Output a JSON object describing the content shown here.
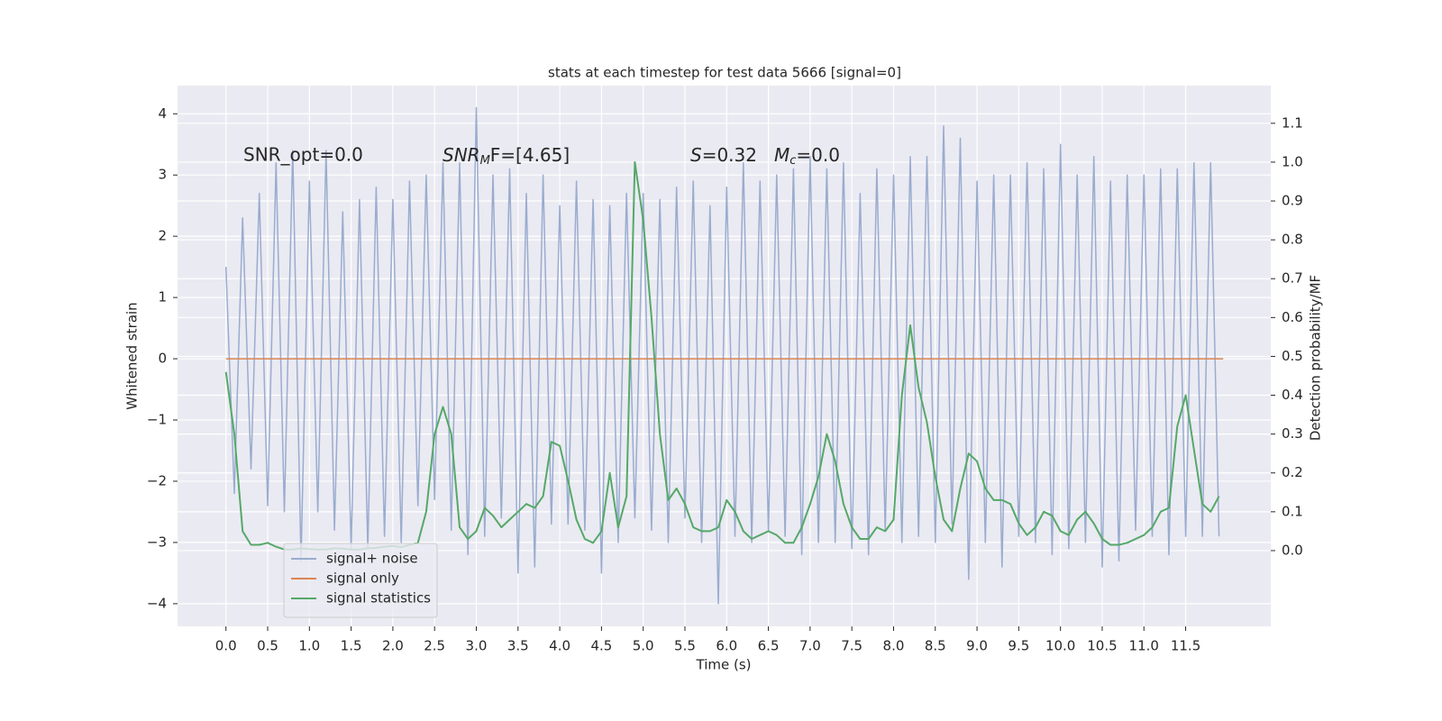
{
  "chart_data": {
    "type": "line",
    "title": "stats at each timestep for test data 5666 [signal=0]",
    "xlabel": "Time (s)",
    "ylabel": "Whitened strain",
    "y2label": "Detection probability/MF",
    "annotations": {
      "snr_opt": "SNR_opt=0.0",
      "snr_mf": [
        "SNR",
        "M",
        "F=[4.65]"
      ],
      "stat": [
        "S",
        "=0.32"
      ],
      "mc": [
        "M",
        "c",
        "=0.0"
      ]
    },
    "x": [
      0,
      0.1,
      0.2,
      0.3,
      0.4,
      0.5,
      0.6,
      0.7,
      0.8,
      0.9,
      1,
      1.1,
      1.2,
      1.3,
      1.4,
      1.5,
      1.6,
      1.7,
      1.8,
      1.9,
      2,
      2.1,
      2.2,
      2.3,
      2.4,
      2.5,
      2.6,
      2.7,
      2.8,
      2.9,
      3,
      3.1,
      3.2,
      3.3,
      3.4,
      3.5,
      3.6,
      3.7,
      3.8,
      3.9,
      4,
      4.1,
      4.2,
      4.3,
      4.4,
      4.5,
      4.6,
      4.7,
      4.8,
      4.9,
      5,
      5.1,
      5.2,
      5.3,
      5.4,
      5.5,
      5.6,
      5.7,
      5.8,
      5.9,
      6,
      6.1,
      6.2,
      6.3,
      6.4,
      6.5,
      6.6,
      6.7,
      6.8,
      6.9,
      7,
      7.1,
      7.2,
      7.3,
      7.4,
      7.5,
      7.6,
      7.7,
      7.8,
      7.9,
      8,
      8.1,
      8.2,
      8.3,
      8.4,
      8.5,
      8.6,
      8.7,
      8.8,
      8.9,
      9,
      9.1,
      9.2,
      9.3,
      9.4,
      9.5,
      9.6,
      9.7,
      9.8,
      9.9,
      10,
      10.1,
      10.2,
      10.3,
      10.4,
      10.5,
      10.6,
      10.7,
      10.8,
      10.9,
      11,
      11.1,
      11.2,
      11.3,
      11.4,
      11.5,
      11.6,
      11.7,
      11.8,
      11.9
    ],
    "series": [
      {
        "name": "signal+ noise",
        "color": "#9aaccf",
        "values": [
          1.5,
          -2.2,
          2.3,
          -1.8,
          2.7,
          -2.4,
          3.2,
          -2.5,
          3.4,
          -3.3,
          2.9,
          -2.5,
          3.4,
          -2.8,
          2.4,
          -3.1,
          2.6,
          -3.1,
          2.8,
          -2.9,
          2.6,
          -3.0,
          2.9,
          -2.4,
          3.0,
          -2.3,
          3.2,
          -2.8,
          3.2,
          -3.2,
          4.1,
          -2.9,
          3.0,
          -2.6,
          3.1,
          -3.5,
          2.7,
          -3.4,
          3.0,
          -2.7,
          2.5,
          -2.7,
          2.9,
          -2.8,
          2.6,
          -3.5,
          2.5,
          -3.0,
          2.7,
          -2.6,
          2.7,
          -2.8,
          2.6,
          -3.0,
          2.8,
          -2.6,
          2.9,
          -3.0,
          2.5,
          -4.0,
          2.8,
          -2.9,
          3.2,
          -3.0,
          2.9,
          -2.8,
          3.0,
          -2.9,
          3.1,
          -3.2,
          3.3,
          -3.0,
          3.1,
          -3.0,
          3.2,
          -3.1,
          2.7,
          -3.2,
          3.1,
          -2.8,
          3.0,
          -3.0,
          3.3,
          -2.9,
          3.3,
          -3.0,
          3.8,
          -2.7,
          3.6,
          -3.6,
          2.9,
          -3.0,
          3.0,
          -3.4,
          3.0,
          -2.9,
          3.2,
          -3.0,
          3.1,
          -3.2,
          3.5,
          -3.1,
          3.0,
          -3.0,
          3.3,
          -3.4,
          2.9,
          -3.3,
          3.0,
          -2.8,
          3.0,
          -2.9,
          3.1,
          -3.2,
          3.1,
          -2.9,
          3.2,
          -2.9,
          3.2,
          -2.9
        ]
      },
      {
        "name": "signal only",
        "color": "#dd8452",
        "x": [
          0,
          11.95
        ],
        "values": [
          0,
          0
        ]
      },
      {
        "name": "signal statistics",
        "color": "#55a868",
        "axis": "y2",
        "values": [
          0.46,
          0.3,
          0.05,
          0.015,
          0.015,
          0.02,
          0.01,
          0.003,
          0.003,
          0.006,
          0.004,
          0.003,
          0.003,
          0.006,
          0.005,
          0.003,
          0.003,
          0.006,
          0.007,
          0.01,
          0.012,
          0.009,
          0.015,
          0.02,
          0.1,
          0.3,
          0.37,
          0.3,
          0.06,
          0.03,
          0.05,
          0.11,
          0.09,
          0.06,
          0.08,
          0.1,
          0.12,
          0.11,
          0.14,
          0.28,
          0.27,
          0.18,
          0.08,
          0.03,
          0.02,
          0.05,
          0.2,
          0.06,
          0.14,
          1.0,
          0.85,
          0.6,
          0.3,
          0.13,
          0.16,
          0.12,
          0.06,
          0.05,
          0.05,
          0.06,
          0.13,
          0.1,
          0.05,
          0.03,
          0.04,
          0.05,
          0.04,
          0.02,
          0.02,
          0.06,
          0.12,
          0.19,
          0.3,
          0.23,
          0.12,
          0.06,
          0.03,
          0.03,
          0.06,
          0.05,
          0.08,
          0.4,
          0.58,
          0.42,
          0.33,
          0.19,
          0.08,
          0.05,
          0.16,
          0.25,
          0.23,
          0.16,
          0.13,
          0.13,
          0.12,
          0.07,
          0.04,
          0.06,
          0.1,
          0.09,
          0.05,
          0.04,
          0.08,
          0.1,
          0.07,
          0.03,
          0.015,
          0.015,
          0.02,
          0.03,
          0.04,
          0.06,
          0.1,
          0.11,
          0.32,
          0.4,
          0.26,
          0.12,
          0.1,
          0.14
        ]
      }
    ],
    "xlim": [
      -0.58,
      12.52
    ],
    "ylim": [
      -4.37,
      4.46
    ],
    "y2lim": [
      -0.195,
      1.197
    ],
    "xticks": [
      {
        "value": 0,
        "label": "0.0"
      },
      {
        "value": 0.5,
        "label": "0.5"
      },
      {
        "value": 1,
        "label": "1.0"
      },
      {
        "value": 1.5,
        "label": "1.5"
      },
      {
        "value": 2,
        "label": "2.0"
      },
      {
        "value": 2.5,
        "label": "2.5"
      },
      {
        "value": 3,
        "label": "3.0"
      },
      {
        "value": 3.5,
        "label": "3.5"
      },
      {
        "value": 4,
        "label": "4.0"
      },
      {
        "value": 4.5,
        "label": "4.5"
      },
      {
        "value": 5,
        "label": "5.0"
      },
      {
        "value": 5.5,
        "label": "5.5"
      },
      {
        "value": 6,
        "label": "6.0"
      },
      {
        "value": 6.5,
        "label": "6.5"
      },
      {
        "value": 7,
        "label": "7.0"
      },
      {
        "value": 7.5,
        "label": "7.5"
      },
      {
        "value": 8,
        "label": "8.0"
      },
      {
        "value": 8.5,
        "label": "8.5"
      },
      {
        "value": 9,
        "label": "9.0"
      },
      {
        "value": 9.5,
        "label": "9.5"
      },
      {
        "value": 10,
        "label": "10.0"
      },
      {
        "value": 10.5,
        "label": "10.5"
      },
      {
        "value": 11,
        "label": "11.0"
      },
      {
        "value": 11.5,
        "label": "11.5"
      }
    ],
    "yticks": [
      {
        "value": -4,
        "label": "−4"
      },
      {
        "value": -3,
        "label": "−3"
      },
      {
        "value": -2,
        "label": "−2"
      },
      {
        "value": -1,
        "label": "−1"
      },
      0,
      1,
      2,
      3,
      4
    ],
    "y2ticks": [
      {
        "value": 0,
        "label": "0.0"
      },
      {
        "value": 0.1,
        "label": "0.1"
      },
      {
        "value": 0.2,
        "label": "0.2"
      },
      {
        "value": 0.3,
        "label": "0.3"
      },
      {
        "value": 0.4,
        "label": "0.4"
      },
      {
        "value": 0.5,
        "label": "0.5"
      },
      {
        "value": 0.6,
        "label": "0.6"
      },
      {
        "value": 0.7,
        "label": "0.7"
      },
      {
        "value": 0.8,
        "label": "0.8"
      },
      {
        "value": 0.9,
        "label": "0.9"
      },
      {
        "value": 1,
        "label": "1.0"
      },
      {
        "value": 1.1,
        "label": "1.1"
      }
    ],
    "grid": true,
    "legend": "lower left"
  }
}
